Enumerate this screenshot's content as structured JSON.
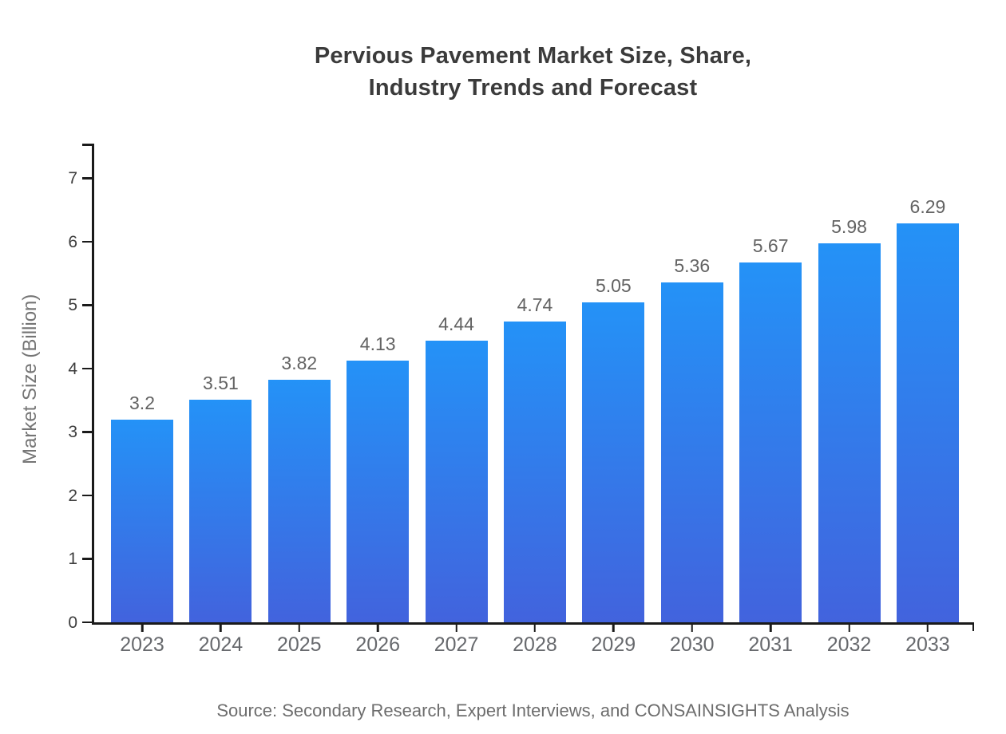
{
  "title": {
    "line1": "Pervious Pavement Market Size, Share,",
    "line2": "Industry Trends and Forecast"
  },
  "source": "Source: Secondary Research, Expert Interviews, and CONSAINSIGHTS Analysis",
  "colors": {
    "bar_gradient_top": "#2492f7",
    "bar_gradient_bottom": "#4263dd",
    "axis": "#1a1a1a",
    "title_text": "#3b3b3b",
    "muted_text": "#67696d"
  },
  "chart_data": {
    "type": "bar",
    "title": "Pervious Pavement Market Size, Share, Industry Trends and Forecast",
    "categories": [
      "2023",
      "2024",
      "2025",
      "2026",
      "2027",
      "2028",
      "2029",
      "2030",
      "2031",
      "2032",
      "2033"
    ],
    "values": [
      3.2,
      3.51,
      3.82,
      4.13,
      4.44,
      4.74,
      5.05,
      5.36,
      5.67,
      5.98,
      6.29
    ],
    "value_labels": [
      "3.2",
      "3.51",
      "3.82",
      "4.13",
      "4.44",
      "4.74",
      "5.05",
      "5.36",
      "5.67",
      "5.98",
      "6.29"
    ],
    "xlabel": "",
    "ylabel": "Market Size (Billion)",
    "ylim": [
      0,
      7.55
    ],
    "yticks": [
      0,
      1,
      2,
      3,
      4,
      5,
      6,
      7
    ],
    "grid": false,
    "legend": null,
    "bar_label_position": "above"
  }
}
